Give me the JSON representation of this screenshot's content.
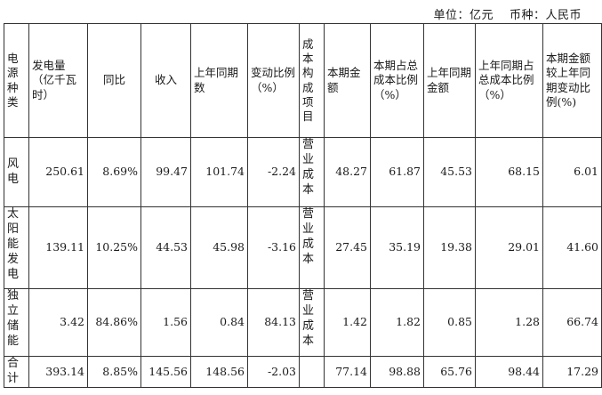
{
  "unit_line": {
    "unit": "单位：亿元",
    "currency": "币种：人民币"
  },
  "table": {
    "headers": [
      "电源种类",
      "发电量（亿千瓦时）",
      "同比",
      "收入",
      "上年同期数",
      "变动比例（%）",
      "成本构成项目",
      "本期金额",
      "本期占总成本比例（%）",
      "上年同期金额",
      "上年同期占总成本比例（%）",
      "本期金额较上年同期变动比例(%)"
    ],
    "rows": [
      [
        "风电",
        "250.61",
        "8.69%",
        "99.47",
        "101.74",
        "-2.24",
        "营业成本",
        "48.27",
        "61.87",
        "45.53",
        "68.15",
        "6.01"
      ],
      [
        "太阳能发电",
        "139.11",
        "10.25%",
        "44.53",
        "45.98",
        "-3.16",
        "营业成本",
        "27.45",
        "35.19",
        "19.38",
        "29.01",
        "41.60"
      ],
      [
        "独立储能",
        "3.42",
        "84.86%",
        "1.56",
        "0.84",
        "84.13",
        "营业成本",
        "1.42",
        "1.82",
        "0.85",
        "1.28",
        "66.74"
      ],
      [
        "合计",
        "393.14",
        "8.85%",
        "145.56",
        "148.56",
        "-2.03",
        "",
        "77.14",
        "98.88",
        "65.76",
        "98.44",
        "17.29"
      ]
    ]
  }
}
